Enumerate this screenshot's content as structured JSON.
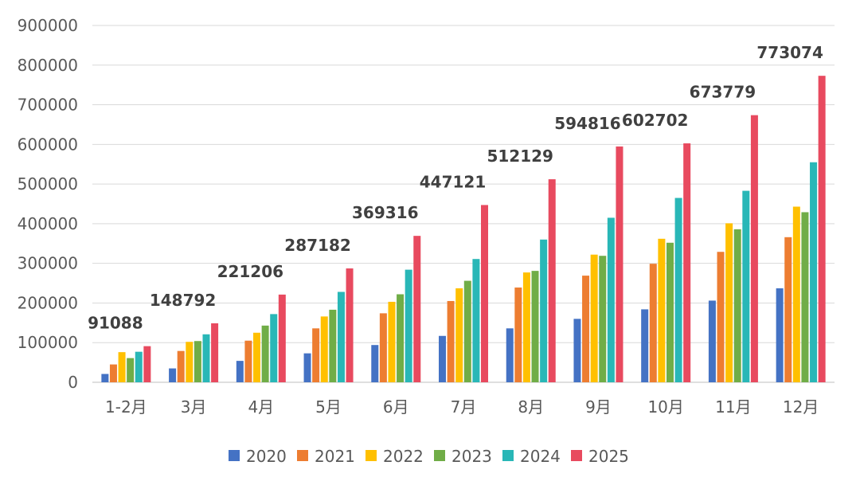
{
  "chart_data": {
    "type": "bar",
    "title": "",
    "xlabel": "",
    "ylabel": "",
    "ylim": [
      0,
      900000
    ],
    "yticks": [
      0,
      100000,
      200000,
      300000,
      400000,
      500000,
      600000,
      700000,
      800000,
      900000
    ],
    "grid": true,
    "legend_position": "bottom",
    "categories": [
      "1-2月",
      "3月",
      "4月",
      "5月",
      "6月",
      "7月",
      "8月",
      "9月",
      "10月",
      "11月",
      "12月"
    ],
    "series": [
      {
        "name": "2020",
        "color": "#4472C4",
        "values": [
          21000,
          35000,
          54000,
          73000,
          94000,
          117000,
          136000,
          160000,
          184000,
          206000,
          237000
        ]
      },
      {
        "name": "2021",
        "color": "#ED7D31",
        "values": [
          45000,
          79000,
          105000,
          136000,
          174000,
          205000,
          239000,
          269000,
          299000,
          329000,
          366000
        ]
      },
      {
        "name": "2022",
        "color": "#FFC000",
        "values": [
          76000,
          102000,
          125000,
          166000,
          203000,
          237000,
          277000,
          322000,
          362000,
          401000,
          443000
        ]
      },
      {
        "name": "2023",
        "color": "#70AD47",
        "values": [
          61000,
          104000,
          143000,
          183000,
          222000,
          256000,
          281000,
          319000,
          352000,
          386000,
          429000
        ]
      },
      {
        "name": "2024",
        "color": "#29B7B7",
        "values": [
          77000,
          121000,
          172000,
          228000,
          284000,
          311000,
          360000,
          415000,
          465000,
          483000,
          555000
        ]
      },
      {
        "name": "2025",
        "color": "#E84A5F",
        "values": [
          91088,
          148792,
          221206,
          287182,
          369316,
          447121,
          512129,
          594816,
          602702,
          673779,
          773074
        ]
      }
    ],
    "data_labels": {
      "series": "2025",
      "values": [
        "91088",
        "148792",
        "221206",
        "287182",
        "369316",
        "447121",
        "512129",
        "594816",
        "602702",
        "673779",
        "773074"
      ]
    }
  }
}
